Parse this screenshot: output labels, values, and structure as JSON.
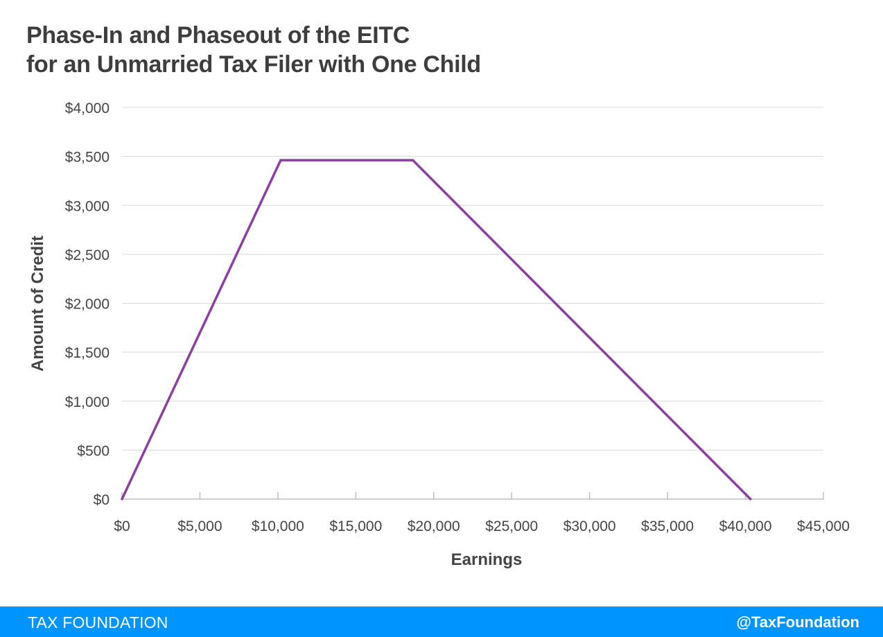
{
  "header": {
    "title_line1": "Phase-In and Phaseout of the EITC",
    "title_line2": "for an Unmarried Tax Filer with One Child"
  },
  "footer": {
    "brand": "TAX FOUNDATION",
    "handle": "@TaxFoundation"
  },
  "colors": {
    "line": "#8b3fa0",
    "grid": "#d9d9d9",
    "axis": "#bfbfbf",
    "footer_bg": "#0094ff"
  },
  "chart_data": {
    "type": "line",
    "xlabel": "Earnings",
    "ylabel": "Amount of Credit",
    "xlim": [
      0,
      45000
    ],
    "ylim": [
      0,
      4000
    ],
    "x_ticks": [
      0,
      5000,
      10000,
      15000,
      20000,
      25000,
      30000,
      35000,
      40000,
      45000
    ],
    "x_tick_labels": [
      "$0",
      "$5,000",
      "$10,000",
      "$15,000",
      "$20,000",
      "$25,000",
      "$30,000",
      "$35,000",
      "$40,000",
      "$45,000"
    ],
    "y_ticks": [
      0,
      500,
      1000,
      1500,
      2000,
      2500,
      3000,
      3500,
      4000
    ],
    "y_tick_labels": [
      "$0",
      "$500",
      "$1,000",
      "$1,500",
      "$2,000",
      "$2,500",
      "$3,000",
      "$3,500",
      "$4,000"
    ],
    "grid": true,
    "series": [
      {
        "x": [
          0,
          10180,
          18660,
          40320
        ],
        "y": [
          0,
          3461,
          3461,
          0
        ]
      }
    ]
  }
}
